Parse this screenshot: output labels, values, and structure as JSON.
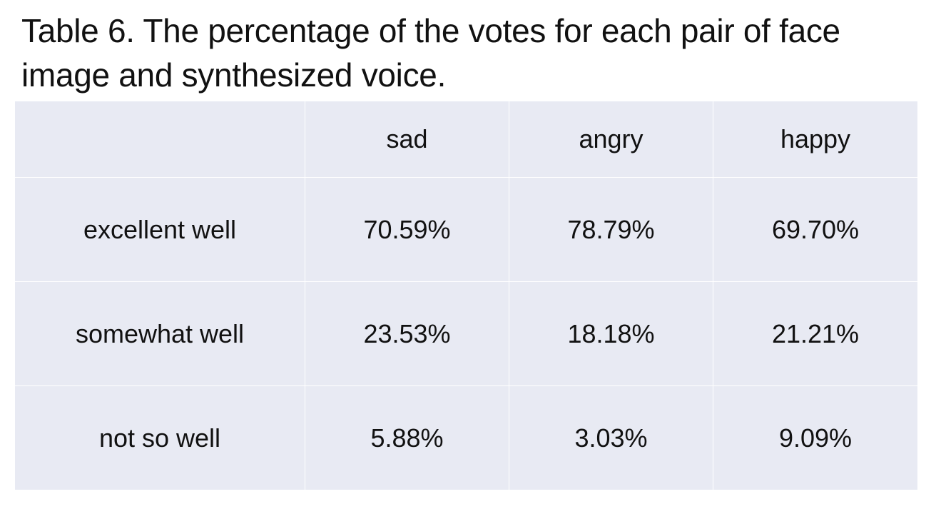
{
  "caption": "Table 6. The percentage of the votes for each pair of face image and synthesized voice.",
  "table": {
    "header": [
      "",
      "sad",
      "angry",
      "happy"
    ],
    "rows": [
      {
        "label": "excellent well",
        "values": [
          "70.59%",
          "78.79%",
          "69.70%"
        ]
      },
      {
        "label": "somewhat well",
        "values": [
          "23.53%",
          "18.18%",
          "21.21%"
        ]
      },
      {
        "label": "not so well",
        "values": [
          "5.88%",
          "3.03%",
          "9.09%"
        ]
      }
    ]
  },
  "colors": {
    "cell_background": "#e8eaf3",
    "grid_lines": "#ffffff",
    "text": "#111111"
  }
}
